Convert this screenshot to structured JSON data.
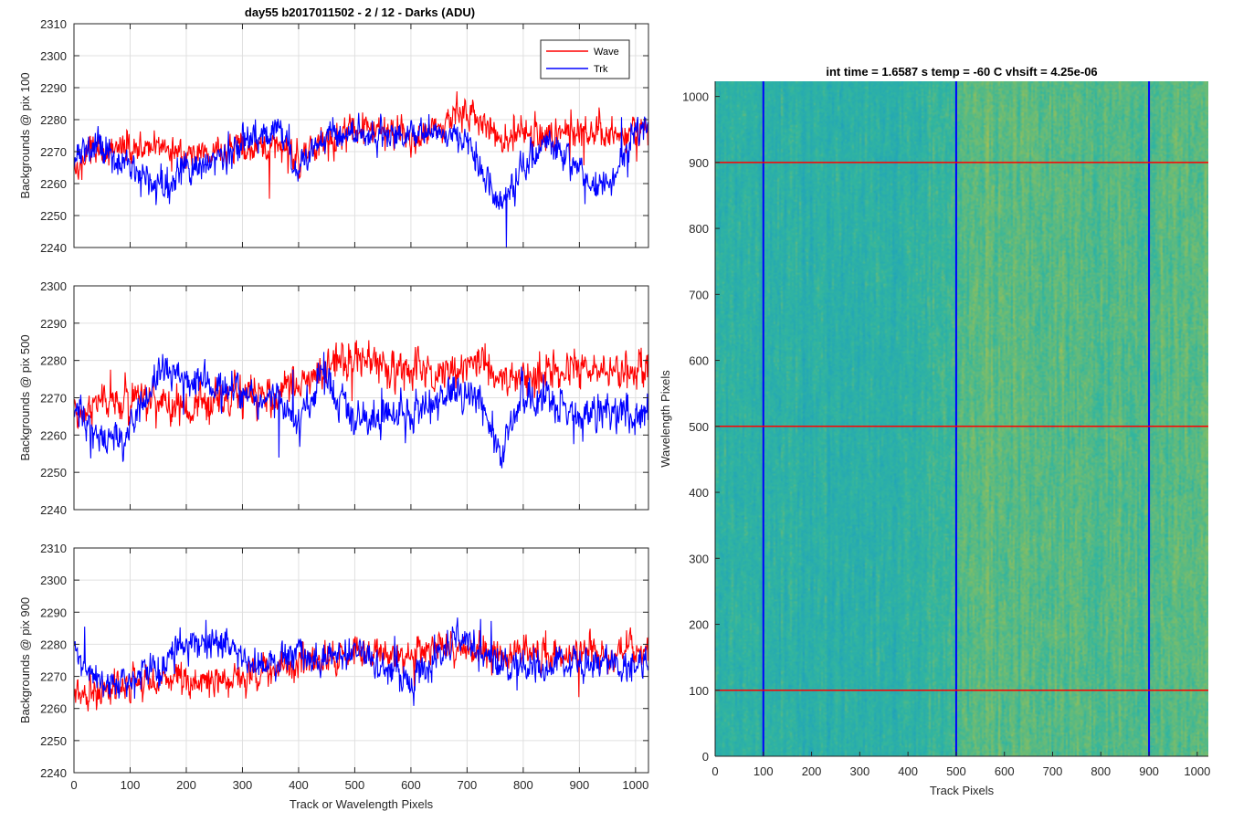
{
  "figure": {
    "title": "day55 b2017011502 - 2 / 12 - Darks (ADU)",
    "bottom_xlabel": "Track or Wavelength Pixels"
  },
  "chart_data": [
    {
      "type": "line",
      "ylabel": "Backgrounds @ pix 100",
      "xlim": [
        0,
        1023
      ],
      "ylim": [
        2240,
        2310
      ],
      "xticks": [
        0,
        100,
        200,
        300,
        400,
        500,
        600,
        700,
        800,
        900,
        1000
      ],
      "yticks": [
        2240,
        2250,
        2260,
        2270,
        2280,
        2290,
        2300,
        2310
      ],
      "show_xticklabels": false,
      "grid": true,
      "legend": {
        "placement": "top-right",
        "entries": [
          "Wave",
          "Trk"
        ]
      },
      "series": [
        {
          "name": "Wave",
          "color": "#ff0000",
          "x": [
            0,
            40,
            80,
            120,
            160,
            200,
            240,
            280,
            320,
            360,
            400,
            440,
            480,
            520,
            560,
            600,
            640,
            680,
            720,
            760,
            800,
            840,
            880,
            920,
            960,
            1000,
            1023
          ],
          "values": [
            2265,
            2270,
            2271,
            2270,
            2270,
            2270,
            2269,
            2271,
            2272,
            2271,
            2270,
            2272,
            2276,
            2277,
            2276,
            2275,
            2277,
            2281,
            2279,
            2274,
            2275,
            2275,
            2275,
            2275,
            2276,
            2276,
            2275
          ]
        },
        {
          "name": "Trk",
          "color": "#0000ff",
          "x": [
            0,
            40,
            80,
            120,
            160,
            200,
            240,
            280,
            320,
            360,
            400,
            440,
            480,
            520,
            560,
            600,
            640,
            680,
            720,
            760,
            800,
            840,
            880,
            920,
            960,
            1000,
            1023
          ],
          "values": [
            2268,
            2272,
            2266,
            2263,
            2258,
            2265,
            2266,
            2270,
            2275,
            2276,
            2265,
            2273,
            2277,
            2276,
            2274,
            2276,
            2276,
            2275,
            2268,
            2253,
            2265,
            2272,
            2270,
            2258,
            2262,
            2277,
            2277
          ]
        }
      ]
    },
    {
      "type": "line",
      "ylabel": "Backgrounds @ pix 500",
      "xlim": [
        0,
        1023
      ],
      "ylim": [
        2240,
        2300
      ],
      "xticks": [
        0,
        100,
        200,
        300,
        400,
        500,
        600,
        700,
        800,
        900,
        1000
      ],
      "yticks": [
        2240,
        2250,
        2260,
        2270,
        2280,
        2290,
        2300
      ],
      "show_xticklabels": false,
      "grid": true,
      "series": [
        {
          "name": "Wave",
          "color": "#ff0000",
          "x": [
            0,
            40,
            80,
            120,
            160,
            200,
            240,
            280,
            320,
            360,
            400,
            440,
            480,
            520,
            560,
            600,
            640,
            680,
            720,
            760,
            800,
            840,
            880,
            920,
            960,
            1000,
            1023
          ],
          "values": [
            2265,
            2269,
            2270,
            2270,
            2269,
            2268,
            2269,
            2270,
            2270,
            2271,
            2274,
            2277,
            2280,
            2280,
            2278,
            2277,
            2276,
            2278,
            2278,
            2276,
            2276,
            2277,
            2277,
            2277,
            2277,
            2278,
            2279
          ]
        },
        {
          "name": "Trk",
          "color": "#0000ff",
          "x": [
            0,
            40,
            80,
            120,
            160,
            200,
            240,
            280,
            320,
            360,
            400,
            440,
            480,
            520,
            560,
            600,
            640,
            680,
            720,
            760,
            800,
            840,
            880,
            920,
            960,
            1000,
            1023
          ],
          "values": [
            2268,
            2260,
            2257,
            2268,
            2278,
            2275,
            2273,
            2272,
            2270,
            2270,
            2262,
            2277,
            2268,
            2264,
            2267,
            2265,
            2268,
            2271,
            2270,
            2254,
            2272,
            2270,
            2266,
            2265,
            2266,
            2267,
            2268
          ]
        }
      ]
    },
    {
      "type": "line",
      "ylabel": "Backgrounds @ pix 900",
      "xlabel": "Track or Wavelength Pixels",
      "xlim": [
        0,
        1023
      ],
      "ylim": [
        2240,
        2310
      ],
      "xticks": [
        0,
        100,
        200,
        300,
        400,
        500,
        600,
        700,
        800,
        900,
        1000
      ],
      "yticks": [
        2240,
        2250,
        2260,
        2270,
        2280,
        2290,
        2300,
        2310
      ],
      "show_xticklabels": true,
      "grid": true,
      "series": [
        {
          "name": "Wave",
          "color": "#ff0000",
          "x": [
            0,
            40,
            80,
            120,
            160,
            200,
            240,
            280,
            320,
            360,
            400,
            440,
            480,
            520,
            560,
            600,
            640,
            680,
            720,
            760,
            800,
            840,
            880,
            920,
            960,
            1000,
            1023
          ],
          "values": [
            2264,
            2266,
            2267,
            2268,
            2269,
            2268,
            2269,
            2270,
            2271,
            2272,
            2274,
            2276,
            2277,
            2277,
            2277,
            2277,
            2278,
            2278,
            2278,
            2276,
            2277,
            2277,
            2277,
            2278,
            2277,
            2278,
            2279
          ]
        },
        {
          "name": "Trk",
          "color": "#0000ff",
          "x": [
            0,
            40,
            80,
            120,
            160,
            200,
            240,
            280,
            320,
            360,
            400,
            440,
            480,
            520,
            560,
            600,
            640,
            680,
            720,
            760,
            800,
            840,
            880,
            920,
            960,
            1000,
            1023
          ],
          "values": [
            2277,
            2268,
            2267,
            2272,
            2273,
            2280,
            2280,
            2279,
            2274,
            2275,
            2278,
            2274,
            2278,
            2276,
            2272,
            2268,
            2275,
            2281,
            2278,
            2275,
            2274,
            2273,
            2274,
            2274,
            2273,
            2274,
            2275
          ]
        }
      ]
    },
    {
      "type": "heatmap",
      "title": "int time = 1.6587 s    temp = -60 C    vhsift = 4.25e-06",
      "xlabel": "Track Pixels",
      "ylabel": "Wavelength Pixels",
      "xlim": [
        0,
        1023
      ],
      "ylim": [
        0,
        1023
      ],
      "xticks": [
        0,
        100,
        200,
        300,
        400,
        500,
        600,
        700,
        800,
        900,
        1000
      ],
      "yticks": [
        0,
        100,
        200,
        300,
        400,
        500,
        600,
        700,
        800,
        900,
        1000
      ],
      "colormap": [
        "#1f8fc4",
        "#22a6b8",
        "#33b69e",
        "#7cbd6a",
        "#b9c04a"
      ],
      "column_mean_profile": {
        "x": [
          0,
          100,
          200,
          300,
          400,
          480,
          520,
          560,
          600,
          700,
          800,
          900,
          1000,
          1023
        ],
        "level": [
          0.42,
          0.44,
          0.42,
          0.4,
          0.43,
          0.5,
          0.6,
          0.65,
          0.63,
          0.62,
          0.6,
          0.62,
          0.64,
          0.64
        ]
      },
      "markers": [
        {
          "orientation": "vertical",
          "at": 100,
          "color": "#0000ff"
        },
        {
          "orientation": "vertical",
          "at": 500,
          "color": "#0000ff"
        },
        {
          "orientation": "vertical",
          "at": 900,
          "color": "#0000ff"
        },
        {
          "orientation": "horizontal",
          "at": 100,
          "color": "#ff0000"
        },
        {
          "orientation": "horizontal",
          "at": 500,
          "color": "#ff0000"
        },
        {
          "orientation": "horizontal",
          "at": 900,
          "color": "#ff0000"
        }
      ]
    }
  ]
}
